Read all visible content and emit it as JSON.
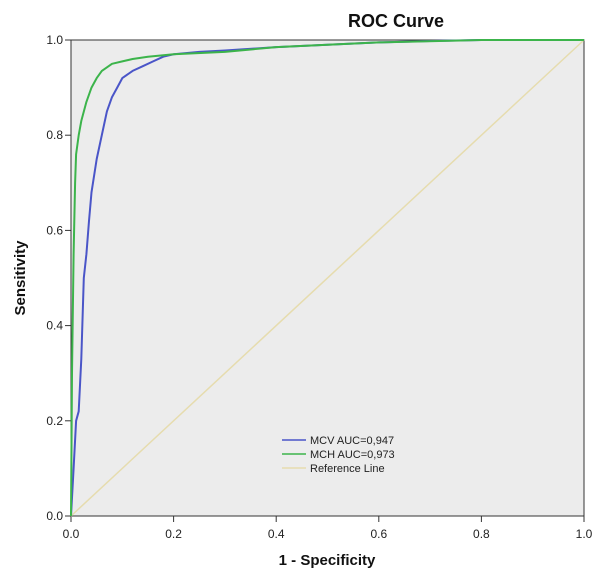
{
  "chart_data": {
    "type": "line",
    "title": "ROC Curve",
    "xlabel": "1 - Specificity",
    "ylabel": "Sensitivity",
    "xlim": [
      0.0,
      1.0
    ],
    "ylim": [
      0.0,
      1.0
    ],
    "x_ticks": [
      "0.0",
      "0.2",
      "0.4",
      "0.6",
      "0.8",
      "1.0"
    ],
    "y_ticks": [
      "0.0",
      "0.2",
      "0.4",
      "0.6",
      "0.8",
      "1.0"
    ],
    "grid": false,
    "legend_position": "bottom-center",
    "series": [
      {
        "name": "MCV AUC=0,947",
        "color": "#4a55c8",
        "x": [
          0.0,
          0.005,
          0.01,
          0.015,
          0.02,
          0.025,
          0.03,
          0.035,
          0.04,
          0.05,
          0.06,
          0.07,
          0.08,
          0.09,
          0.1,
          0.12,
          0.14,
          0.16,
          0.18,
          0.2,
          0.25,
          0.3,
          0.4,
          0.5,
          0.6,
          0.7,
          0.8,
          0.9,
          1.0
        ],
        "y": [
          0.0,
          0.1,
          0.2,
          0.22,
          0.33,
          0.5,
          0.55,
          0.62,
          0.68,
          0.75,
          0.8,
          0.85,
          0.88,
          0.9,
          0.92,
          0.935,
          0.945,
          0.955,
          0.965,
          0.97,
          0.975,
          0.978,
          0.985,
          0.99,
          0.995,
          0.998,
          1.0,
          1.0,
          1.0
        ]
      },
      {
        "name": "MCH AUC=0,973",
        "color": "#3cb44b",
        "x": [
          0.0,
          0.002,
          0.005,
          0.008,
          0.01,
          0.015,
          0.02,
          0.03,
          0.04,
          0.05,
          0.06,
          0.08,
          0.1,
          0.12,
          0.15,
          0.2,
          0.3,
          0.4,
          0.5,
          0.6,
          0.8,
          1.0
        ],
        "y": [
          0.0,
          0.3,
          0.55,
          0.7,
          0.76,
          0.8,
          0.83,
          0.87,
          0.9,
          0.92,
          0.935,
          0.95,
          0.955,
          0.96,
          0.965,
          0.97,
          0.975,
          0.985,
          0.99,
          0.995,
          1.0,
          1.0
        ]
      },
      {
        "name": "Reference Line",
        "color": "#e6dcae",
        "x": [
          0.0,
          1.0
        ],
        "y": [
          0.0,
          1.0
        ]
      }
    ]
  }
}
